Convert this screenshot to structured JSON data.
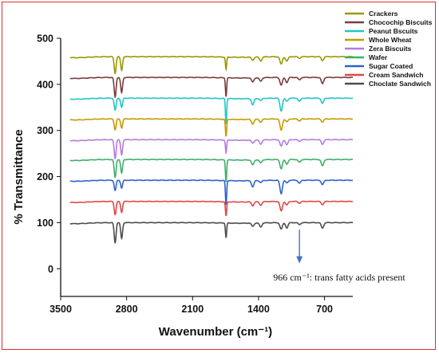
{
  "chart_data": {
    "type": "line",
    "xlabel": "Wavenumber (cm⁻¹)",
    "ylabel": "% Transmittance",
    "xlim": [
      3500,
      400
    ],
    "ylim": [
      -60,
      500
    ],
    "x_reversed": true,
    "xticks": [
      3500,
      2800,
      2100,
      1400,
      700
    ],
    "yticks": [
      0,
      100,
      200,
      300,
      400,
      500
    ],
    "grid": false,
    "legend_placement": "top-right",
    "peaks": [
      {
        "x": 2922,
        "depth": 38
      },
      {
        "x": 2853,
        "depth": 30
      },
      {
        "x": 1745,
        "depth": 48
      },
      {
        "x": 1462,
        "depth": 12
      },
      {
        "x": 1377,
        "depth": 8
      },
      {
        "x": 1160,
        "depth": 25
      },
      {
        "x": 1100,
        "depth": 10
      },
      {
        "x": 966,
        "depth": 6
      },
      {
        "x": 722,
        "depth": 12
      }
    ],
    "series": [
      {
        "name": "Crackers",
        "baseline": 460,
        "color": "#9b9700"
      },
      {
        "name": "Chocochip Biscuits",
        "baseline": 415,
        "color": "#7a3b3b"
      },
      {
        "name": "Peanut Bscuits",
        "baseline": 370,
        "color": "#22c5c9"
      },
      {
        "name": "Whole Wheat",
        "baseline": 325,
        "color": "#c79a00"
      },
      {
        "name": "Zera Biscuits",
        "baseline": 280,
        "color": "#b57ae0"
      },
      {
        "name": "Wafer",
        "baseline": 237,
        "color": "#3fae6a"
      },
      {
        "name": "Sugar Coated",
        "baseline": 192,
        "color": "#2f62c8"
      },
      {
        "name": "Cream Sandwich",
        "baseline": 146,
        "color": "#e04848"
      },
      {
        "name": "Choclate Sandwich",
        "baseline": 100,
        "color": "#4d4d4d"
      }
    ],
    "annotation": {
      "text": "966 cm⁻¹: trans fatty acids present",
      "arrow_x": 966,
      "arrow_y_from": 85,
      "arrow_y_to": 15,
      "arrow_color": "#4472c4"
    }
  }
}
